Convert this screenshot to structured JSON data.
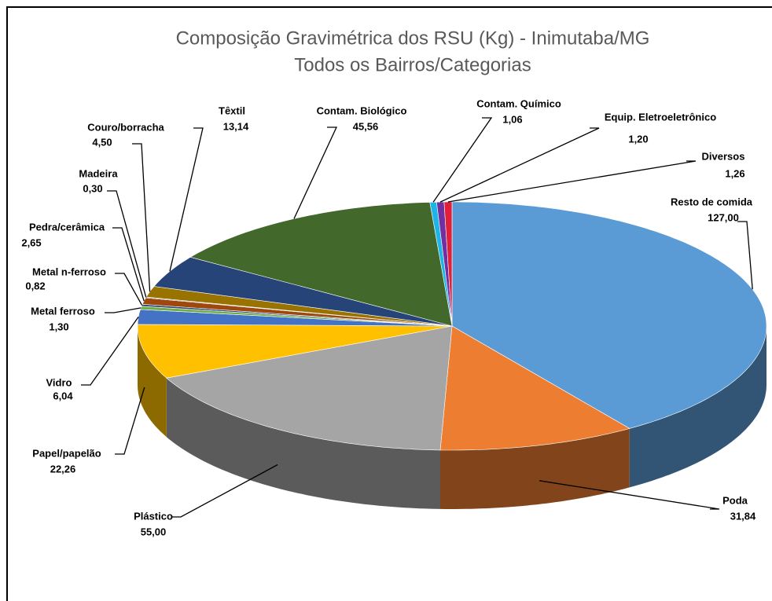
{
  "chart_data": {
    "type": "pie",
    "title": "Composição Gravimétrica dos RSU (Kg) - Inimutaba/MG",
    "subtitle": "Todos os Bairros/Categorias",
    "categories": [
      "Resto de comida",
      "Poda",
      "Plástico",
      "Papel/papelão",
      "Vidro",
      "Metal ferroso",
      "Metal n-ferroso",
      "Pedra/cerâmica",
      "Madeira",
      "Couro/borracha",
      "Têxtil",
      "Contam. Biológico",
      "Contam. Químico",
      "Equip. Eletroeletrônico",
      "Diversos"
    ],
    "values": [
      127.0,
      31.84,
      55.0,
      22.26,
      6.04,
      1.3,
      0.82,
      2.65,
      0.3,
      4.5,
      13.14,
      45.56,
      1.06,
      1.2,
      1.26
    ],
    "value_labels": [
      "127,00",
      "31,84",
      "55,00",
      "22,26",
      "6,04",
      "1,30",
      "0,82",
      "2,65",
      "0,30",
      "4,50",
      "13,14",
      "45,56",
      "1,06",
      "1,20",
      "1,26"
    ],
    "colors": [
      "#5b9bd5",
      "#ed7d31",
      "#a5a5a5",
      "#ffc000",
      "#4472c4",
      "#70ad47",
      "#264478",
      "#9e480e",
      "#636363",
      "#997300",
      "#264478",
      "#43682b",
      "#1fb4e8",
      "#7030a0",
      "#e0203a"
    ]
  }
}
